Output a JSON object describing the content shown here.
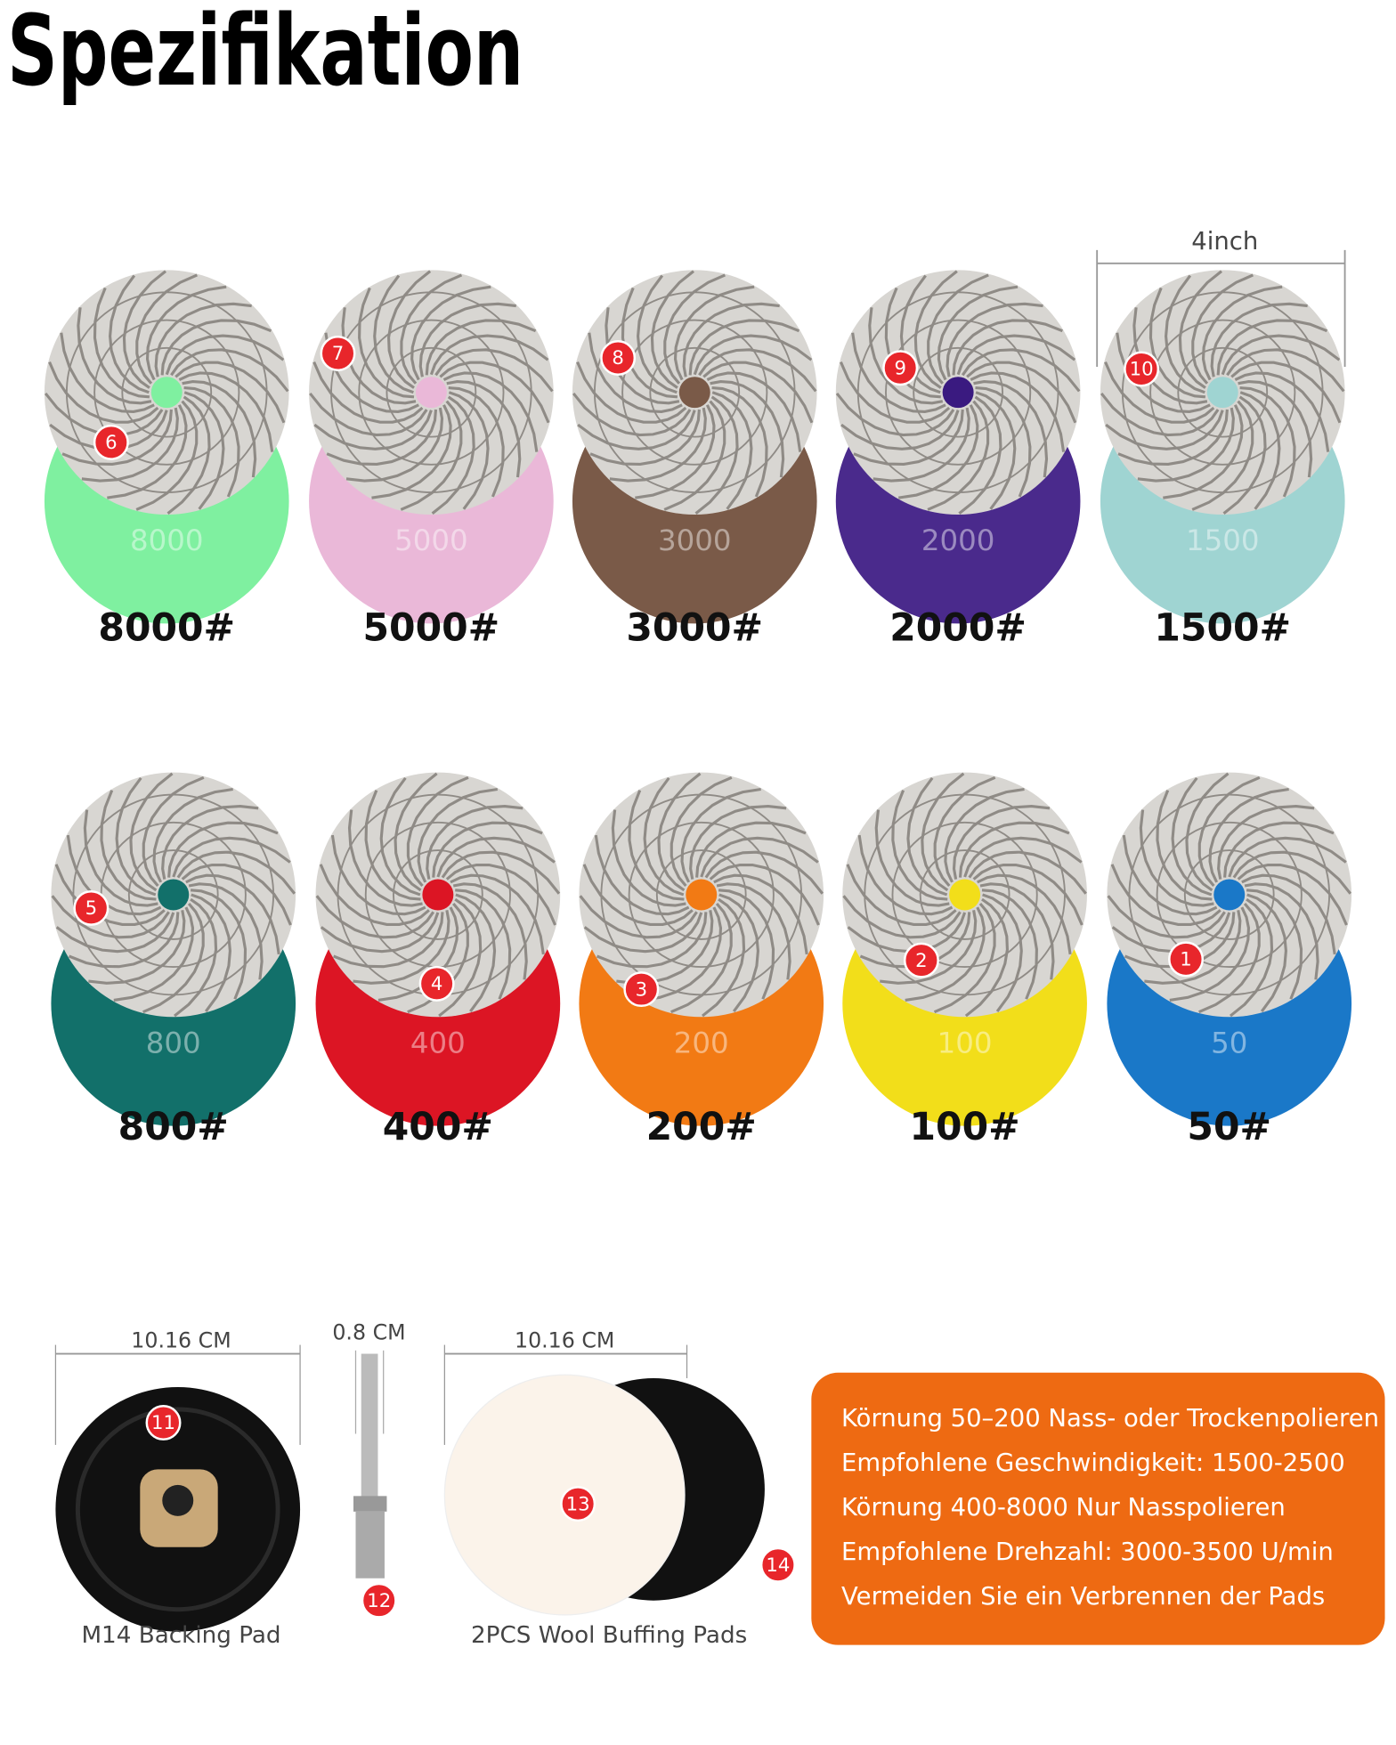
{
  "title": "Spezifikation",
  "dimension": "4inch",
  "pads": [
    {
      "grit": "8000#",
      "badge": "6",
      "face": "8000",
      "color": "#7ff0a0",
      "hole": "#7ff0a0"
    },
    {
      "grit": "5000#",
      "badge": "7",
      "face": "5000",
      "color": "#eab8d8",
      "hole": "#eab8d8"
    },
    {
      "grit": "3000#",
      "badge": "8",
      "face": "3000",
      "color": "#7a5a48",
      "hole": "#7a5a48"
    },
    {
      "grit": "2000#",
      "badge": "9",
      "face": "2000",
      "color": "#4a2a8c",
      "hole": "#3a1a80"
    },
    {
      "grit": "1500#",
      "badge": "10",
      "face": "1500",
      "color": "#9fd4d2",
      "hole": "#9fd4d2"
    },
    {
      "grit": "800#",
      "badge": "5",
      "face": "800",
      "color": "#12706a",
      "hole": "#12706a"
    },
    {
      "grit": "400#",
      "badge": "4",
      "face": "400",
      "color": "#dc1524",
      "hole": "#dc1524"
    },
    {
      "grit": "200#",
      "badge": "3",
      "face": "200",
      "color": "#f27a14",
      "hole": "#f27a14"
    },
    {
      "grit": "100#",
      "badge": "2",
      "face": "100",
      "color": "#f2de1a",
      "hole": "#f2de1a"
    },
    {
      "grit": "50#",
      "badge": "1",
      "face": "50",
      "color": "#1a78c8",
      "hole": "#1a78c8"
    }
  ],
  "accessories": {
    "backing_pad": {
      "width": "10.16 CM",
      "badge": "11",
      "label": "M14 Backing Pad"
    },
    "shaft": {
      "width": "0.8 CM",
      "badge": "12"
    },
    "wool_pads": {
      "width": "10.16 CM",
      "badge_white": "13",
      "badge_black": "14",
      "label": "2PCS Wool Buffing Pads"
    }
  },
  "info": [
    "Körnung 50–200 Nass- oder Trockenpolieren",
    "Empfohlene Geschwindigkeit: 1500-2500",
    "Körnung 400-8000 Nur Nasspolieren",
    "Empfohlene Drehzahl: 3000-3500 U/min",
    "Vermeiden Sie ein Verbrennen der Pads"
  ]
}
